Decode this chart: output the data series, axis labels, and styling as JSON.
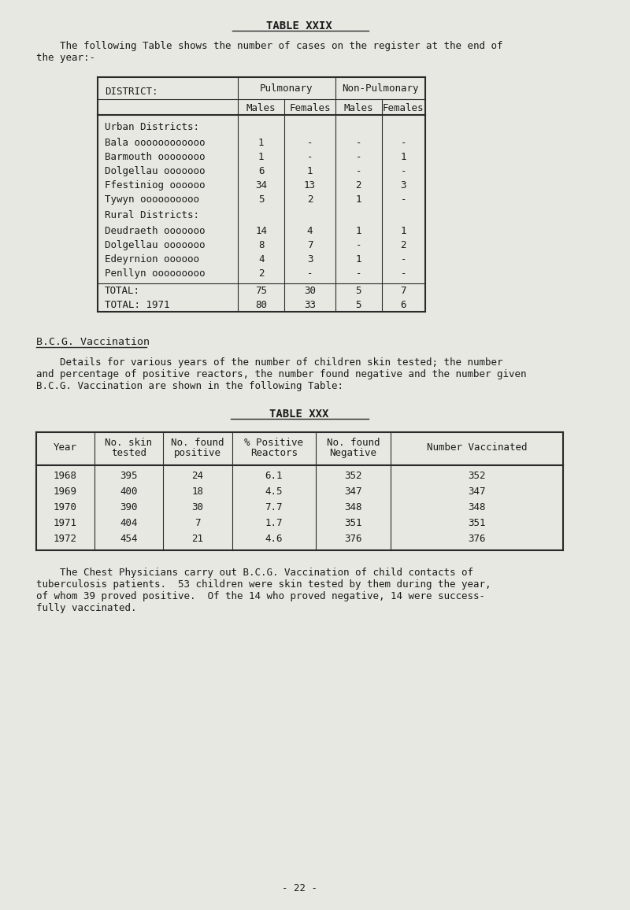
{
  "page_bg": "#e8e8e2",
  "title1": "TABLE XXIX",
  "intro_text": "    The following Table shows the number of cases on the register at the end of\nthe year:-",
  "table1_sections": [
    {
      "section_title": "Urban Districts:",
      "rows": [
        [
          "Bala oooooooooooo",
          "1",
          "-",
          "-",
          "-"
        ],
        [
          "Barmouth oooooooo",
          "1",
          "-",
          "-",
          "1"
        ],
        [
          "Dolgellau ooooooo",
          "6",
          "1",
          "-",
          "-"
        ],
        [
          "Ffestiniog oooooo",
          "34",
          "13",
          "2",
          "3"
        ],
        [
          "Tywyn oooooooooo",
          "5",
          "2",
          "1",
          "-"
        ]
      ]
    },
    {
      "section_title": "Rural Districts:",
      "rows": [
        [
          "Deudraeth ooooooo",
          "14",
          "4",
          "1",
          "1"
        ],
        [
          "Dolgellau ooooooo",
          "8",
          "7",
          "-",
          "2"
        ],
        [
          "Edeyrnion oooooo",
          "4",
          "3",
          "1",
          "-"
        ],
        [
          "Penllyn ooooooooo",
          "2",
          "-",
          "-",
          "-"
        ]
      ]
    }
  ],
  "table1_totals": [
    [
      "TOTAL:",
      "75",
      "30",
      "5",
      "7"
    ],
    [
      "TOTAL: 1971",
      "80",
      "33",
      "5",
      "6"
    ]
  ],
  "bcg_heading": "B.C.G. Vaccination",
  "bcg_intro": "    Details for various years of the number of children skin tested; the number\nand percentage of positive reactors, the number found negative and the number given\nB.C.G. Vaccination are shown in the following Table:",
  "title2": "TABLE XXX",
  "table2_headers": [
    "Year",
    "No. skin\ntested",
    "No. found\npositive",
    "% Positive\nReactors",
    "No. found\nNegative",
    "Number Vaccinated"
  ],
  "table2_rows": [
    [
      "1968",
      "395",
      "24",
      "6.1",
      "352",
      "352"
    ],
    [
      "1969",
      "400",
      "18",
      "4.5",
      "347",
      "347"
    ],
    [
      "1970",
      "390",
      "30",
      "7.7",
      "348",
      "348"
    ],
    [
      "1971",
      "404",
      "7",
      "1.7",
      "351",
      "351"
    ],
    [
      "1972",
      "454",
      "21",
      "4.6",
      "376",
      "376"
    ]
  ],
  "closing_text": "    The Chest Physicians carry out B.C.G. Vaccination of child contacts of\ntuberculosis patients.  53 children were skin tested by them during the year,\nof whom 39 proved positive.  Of the 14 who proved negative, 14 were success-\nfully vaccinated.",
  "page_number": "- 22 -"
}
